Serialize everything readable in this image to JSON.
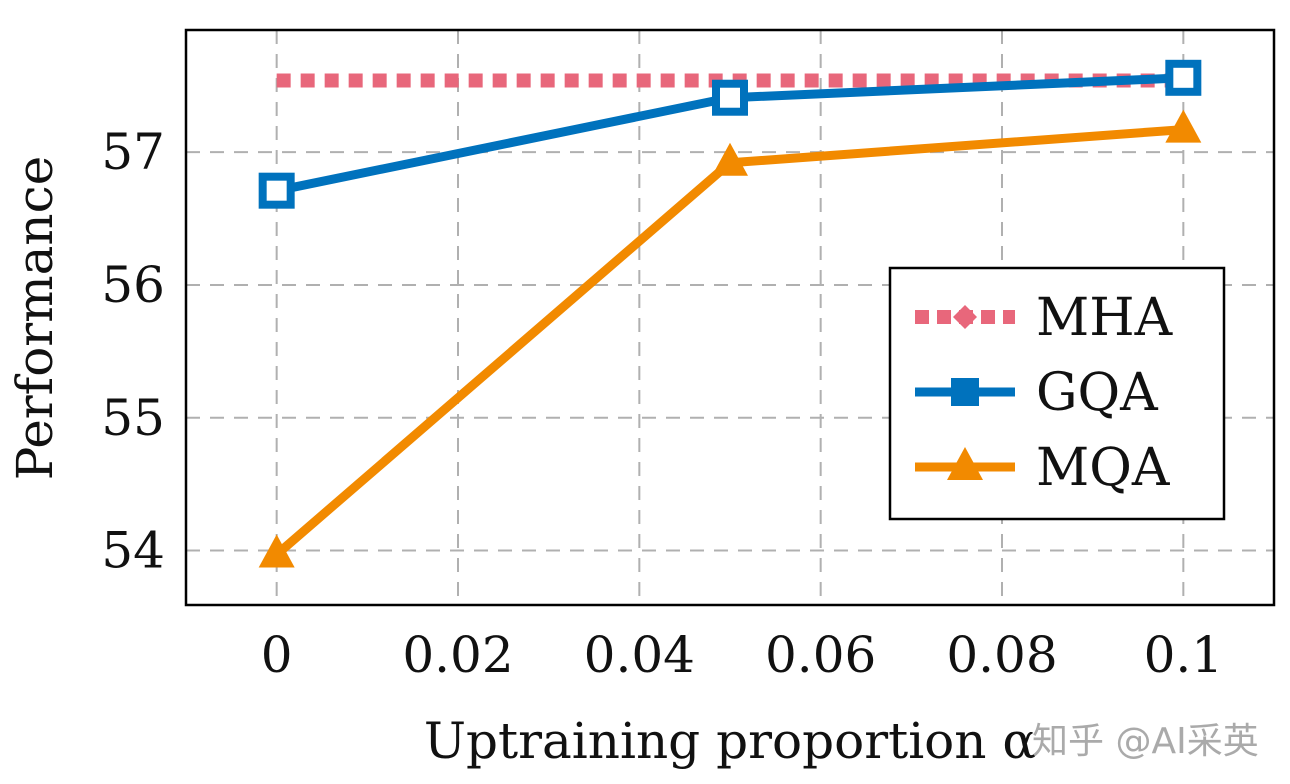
{
  "chart_data": {
    "type": "line",
    "title": "",
    "xlabel": "Uptraining proportion α",
    "ylabel": "Performance",
    "xlim": [
      -0.01,
      0.11
    ],
    "ylim": [
      53.59,
      57.92
    ],
    "xticks": [
      0,
      0.02,
      0.04,
      0.06,
      0.08,
      0.1
    ],
    "xtick_labels": [
      "0",
      "0.02",
      "0.04",
      "0.06",
      "0.08",
      "0.1"
    ],
    "yticks": [
      54,
      55,
      56,
      57
    ],
    "ytick_labels": [
      "54",
      "55",
      "56",
      "57"
    ],
    "grid": true,
    "legend_position": "center-right",
    "series": [
      {
        "name": "MHA",
        "x": [
          0,
          0.1
        ],
        "y": [
          57.54,
          57.54
        ],
        "color": "#e8677b",
        "style": "dotted",
        "marker": "diamond"
      },
      {
        "name": "GQA",
        "x": [
          0,
          0.05,
          0.1
        ],
        "y": [
          56.71,
          57.41,
          57.56
        ],
        "color": "#0072bd",
        "style": "solid",
        "marker": "square-open"
      },
      {
        "name": "MQA",
        "x": [
          0,
          0.05,
          0.1
        ],
        "y": [
          53.97,
          56.92,
          57.17
        ],
        "color": "#f28a00",
        "style": "solid",
        "marker": "triangle"
      }
    ]
  },
  "watermark": "知乎 @AI采英"
}
